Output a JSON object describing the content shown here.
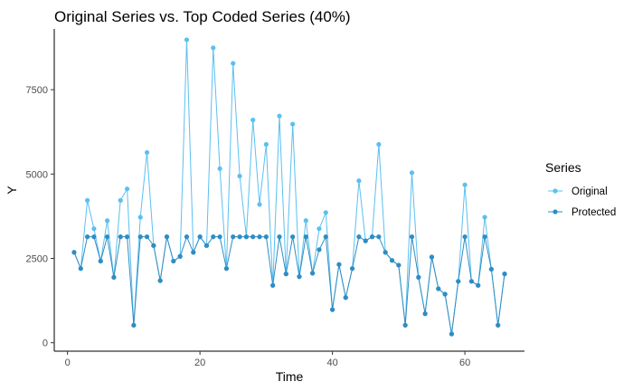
{
  "chart_data": {
    "type": "line",
    "title": "Original Series vs. Top Coded Series (40%)",
    "xlabel": "Time",
    "ylabel": "Y",
    "xlim": [
      -2,
      69
    ],
    "ylim": [
      -250,
      9300
    ],
    "xticks": [
      0,
      20,
      40,
      60
    ],
    "yticks": [
      0,
      2500,
      5000,
      7500
    ],
    "xtick_labels": [
      "0",
      "20",
      "40",
      "60"
    ],
    "ytick_labels": [
      "0",
      "2500",
      "5000",
      "7500"
    ],
    "grid": false,
    "legend": {
      "title": "Series",
      "placement": "right"
    },
    "x": [
      1,
      2,
      3,
      4,
      5,
      6,
      7,
      8,
      9,
      10,
      11,
      12,
      13,
      14,
      15,
      16,
      17,
      18,
      19,
      20,
      21,
      22,
      23,
      24,
      25,
      26,
      27,
      28,
      29,
      30,
      31,
      32,
      33,
      34,
      35,
      36,
      37,
      38,
      39,
      40,
      41,
      42,
      43,
      44,
      45,
      46,
      47,
      48,
      49,
      50,
      51,
      52,
      53,
      54,
      55,
      56,
      57,
      58,
      59,
      60,
      61,
      62,
      63,
      64,
      65,
      66
    ],
    "series": [
      {
        "name": "Original",
        "color": "#5bc0f0",
        "values": [
          2680,
          2200,
          4220,
          3380,
          2420,
          3620,
          1940,
          4220,
          4560,
          520,
          3720,
          5640,
          2880,
          1840,
          3140,
          2420,
          2560,
          8980,
          2680,
          3140,
          2880,
          8740,
          5160,
          2200,
          8280,
          4940,
          3140,
          6600,
          4100,
          5880,
          1700,
          6720,
          2040,
          6480,
          1960,
          3620,
          2060,
          3380,
          3860,
          980,
          2320,
          1340,
          2200,
          4800,
          3020,
          3140,
          5880,
          2680,
          2440,
          2300,
          520,
          5040,
          1940,
          860,
          2540,
          1600,
          1440,
          260,
          1820,
          4680,
          1820,
          1700,
          3720,
          2180,
          520,
          2040
        ]
      },
      {
        "name": "Protected",
        "color": "#2f8dc3",
        "values": [
          2680,
          2200,
          3140,
          3140,
          2420,
          3140,
          1940,
          3140,
          3140,
          520,
          3140,
          3140,
          2880,
          1840,
          3140,
          2420,
          2560,
          3140,
          2680,
          3140,
          2880,
          3140,
          3140,
          2200,
          3140,
          3140,
          3140,
          3140,
          3140,
          3140,
          1700,
          3140,
          2040,
          3140,
          1960,
          3140,
          2060,
          2760,
          3140,
          980,
          2320,
          1340,
          2200,
          3140,
          3020,
          3140,
          3140,
          2680,
          2440,
          2300,
          520,
          3140,
          1940,
          860,
          2540,
          1600,
          1440,
          260,
          1820,
          3140,
          1820,
          1700,
          3140,
          2180,
          520,
          2040
        ]
      }
    ]
  }
}
